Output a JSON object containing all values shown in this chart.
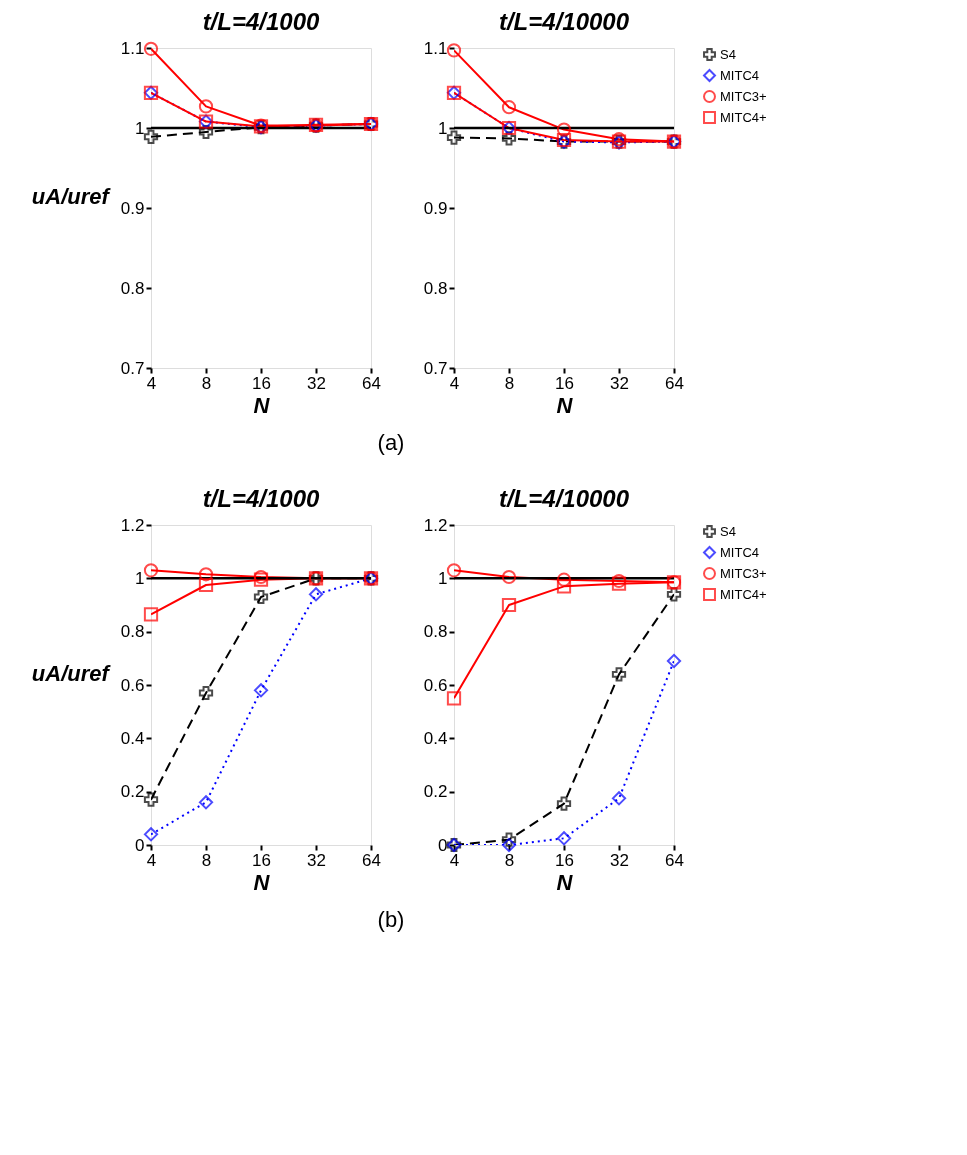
{
  "chart_data": [
    {
      "type": "line",
      "title": "t/L=4/1000",
      "xlabel": "N",
      "ylabel": "uA/uref",
      "x": [
        4,
        8,
        16,
        32,
        64
      ],
      "log": "x",
      "xlim": [
        4,
        64
      ],
      "xticks": [
        4,
        8,
        16,
        32,
        64
      ],
      "ylim": [
        0.7,
        1.1
      ],
      "yticks": [
        0.7,
        0.8,
        0.9,
        1,
        1.1
      ],
      "grid": false,
      "legend": "right",
      "ref_lines": [
        {
          "axis": "y",
          "value": 1,
          "color": "#000000",
          "line_style": "solid"
        }
      ],
      "annotations": [
        "(a)"
      ],
      "series": [
        {
          "name": "S4",
          "color": "#000000",
          "marker": "cross",
          "line_style": "dashed",
          "values": [
            0.989,
            0.995,
            1.001,
            1.003,
            1.005
          ]
        },
        {
          "name": "MITC4",
          "color": "#0000ff",
          "marker": "diamond",
          "line_style": "dotted",
          "values": [
            1.044,
            1.008,
            1.001,
            1.003,
            1.005
          ]
        },
        {
          "name": "MITC3+",
          "color": "#ff0000",
          "marker": "circle",
          "line_style": "solid",
          "values": [
            1.099,
            1.027,
            1.003,
            1.003,
            1.005
          ]
        },
        {
          "name": "MITC4+",
          "color": "#ff0000",
          "marker": "square",
          "line_style": "solid",
          "values": [
            1.044,
            1.008,
            1.002,
            1.004,
            1.005
          ]
        }
      ]
    },
    {
      "type": "line",
      "title": "t/L=4/10000",
      "xlabel": "N",
      "x": [
        4,
        8,
        16,
        32,
        64
      ],
      "log": "x",
      "xlim": [
        4,
        64
      ],
      "xticks": [
        4,
        8,
        16,
        32,
        64
      ],
      "ylim": [
        0.7,
        1.1
      ],
      "yticks": [
        0.7,
        0.8,
        0.9,
        1,
        1.1
      ],
      "grid": false,
      "legend": "right",
      "ref_lines": [
        {
          "axis": "y",
          "value": 1,
          "color": "#000000",
          "line_style": "solid"
        }
      ],
      "series": [
        {
          "name": "S4",
          "color": "#000000",
          "marker": "cross",
          "line_style": "dashed",
          "values": [
            0.988,
            0.987,
            0.983,
            0.983,
            0.983
          ]
        },
        {
          "name": "MITC4",
          "color": "#0000ff",
          "marker": "diamond",
          "line_style": "dotted",
          "values": [
            1.044,
            1.0,
            0.983,
            0.982,
            0.983
          ]
        },
        {
          "name": "MITC3+",
          "color": "#ff0000",
          "marker": "circle",
          "line_style": "solid",
          "values": [
            1.097,
            1.026,
            0.998,
            0.986,
            0.983
          ]
        },
        {
          "name": "MITC4+",
          "color": "#ff0000",
          "marker": "square",
          "line_style": "solid",
          "values": [
            1.044,
            1.0,
            0.985,
            0.983,
            0.983
          ]
        }
      ]
    },
    {
      "type": "line",
      "title": "t/L=4/1000",
      "xlabel": "N",
      "ylabel": "uA/uref",
      "x": [
        4,
        8,
        16,
        32,
        64
      ],
      "log": "x",
      "xlim": [
        4,
        64
      ],
      "xticks": [
        4,
        8,
        16,
        32,
        64
      ],
      "ylim": [
        0,
        1.2
      ],
      "yticks": [
        0,
        0.2,
        0.4,
        0.6,
        0.8,
        1,
        1.2
      ],
      "grid": false,
      "legend": "right",
      "ref_lines": [
        {
          "axis": "y",
          "value": 1,
          "color": "#000000",
          "line_style": "solid"
        }
      ],
      "annotations": [
        "(b)"
      ],
      "series": [
        {
          "name": "S4",
          "color": "#000000",
          "marker": "cross",
          "line_style": "dashed",
          "values": [
            0.17,
            0.57,
            0.93,
            1.0,
            1.0
          ]
        },
        {
          "name": "MITC4",
          "color": "#0000ff",
          "marker": "diamond",
          "line_style": "dotted",
          "values": [
            0.04,
            0.16,
            0.58,
            0.94,
            1.0
          ]
        },
        {
          "name": "MITC3+",
          "color": "#ff0000",
          "marker": "circle",
          "line_style": "solid",
          "values": [
            1.03,
            1.015,
            1.005,
            1.0,
            1.0
          ]
        },
        {
          "name": "MITC4+",
          "color": "#ff0000",
          "marker": "square",
          "line_style": "solid",
          "values": [
            0.865,
            0.975,
            0.995,
            1.0,
            1.0
          ]
        }
      ]
    },
    {
      "type": "line",
      "title": "t/L=4/10000",
      "xlabel": "N",
      "x": [
        4,
        8,
        16,
        32,
        64
      ],
      "log": "x",
      "xlim": [
        4,
        64
      ],
      "xticks": [
        4,
        8,
        16,
        32,
        64
      ],
      "ylim": [
        0,
        1.2
      ],
      "yticks": [
        0,
        0.2,
        0.4,
        0.6,
        0.8,
        1,
        1.2
      ],
      "grid": false,
      "legend": "right",
      "ref_lines": [
        {
          "axis": "y",
          "value": 1,
          "color": "#000000",
          "line_style": "solid"
        }
      ],
      "series": [
        {
          "name": "S4",
          "color": "#000000",
          "marker": "cross",
          "line_style": "dashed",
          "values": [
            0.0,
            0.02,
            0.155,
            0.64,
            0.94
          ]
        },
        {
          "name": "MITC4",
          "color": "#0000ff",
          "marker": "diamond",
          "line_style": "dotted",
          "values": [
            0.0,
            0.0,
            0.025,
            0.175,
            0.69
          ]
        },
        {
          "name": "MITC3+",
          "color": "#ff0000",
          "marker": "circle",
          "line_style": "solid",
          "values": [
            1.03,
            1.005,
            0.995,
            0.99,
            0.985
          ]
        },
        {
          "name": "MITC4+",
          "color": "#ff0000",
          "marker": "square",
          "line_style": "solid",
          "values": [
            0.55,
            0.9,
            0.97,
            0.98,
            0.985
          ]
        }
      ]
    }
  ]
}
